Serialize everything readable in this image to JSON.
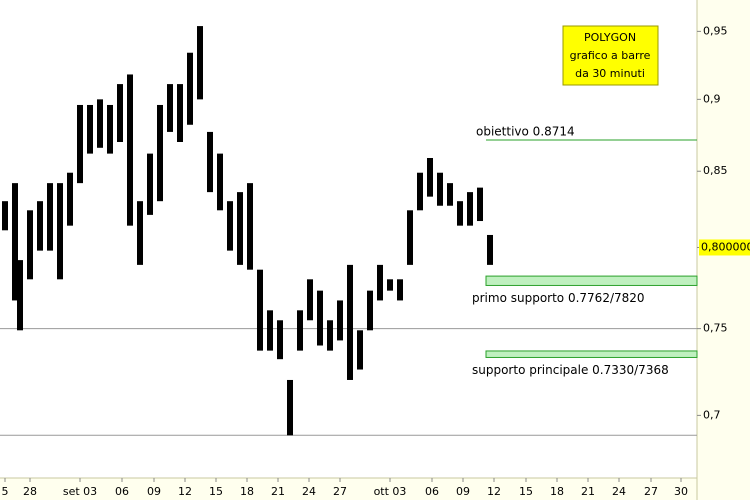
{
  "chart_data": {
    "type": "bar-range",
    "title_lines": [
      "POLYGON",
      "grafico a barre",
      "da 30 minuti"
    ],
    "log_scale": true,
    "ylim": [
      0.666,
      0.974
    ],
    "yticks": [
      {
        "value": 0.95,
        "label": "0,95"
      },
      {
        "value": 0.9,
        "label": "0,9"
      },
      {
        "value": 0.85,
        "label": "0,85"
      },
      {
        "value": 0.8,
        "label": "0,8"
      },
      {
        "value": 0.75,
        "label": "0,75"
      },
      {
        "value": 0.7,
        "label": "0,7"
      }
    ],
    "xlim": [
      0,
      697
    ],
    "xticks": [
      {
        "value": 5,
        "label": "5"
      },
      {
        "value": 30,
        "label": "28"
      },
      {
        "value": 80,
        "label": "set 03"
      },
      {
        "value": 122,
        "label": "06"
      },
      {
        "value": 154,
        "label": "09"
      },
      {
        "value": 185,
        "label": "12"
      },
      {
        "value": 216,
        "label": "15"
      },
      {
        "value": 247,
        "label": "18"
      },
      {
        "value": 278,
        "label": "21"
      },
      {
        "value": 309,
        "label": "24"
      },
      {
        "value": 340,
        "label": "27"
      },
      {
        "value": 390,
        "label": "ott 03"
      },
      {
        "value": 432,
        "label": "06"
      },
      {
        "value": 463,
        "label": "09"
      },
      {
        "value": 494,
        "label": "12"
      },
      {
        "value": 526,
        "label": "15"
      },
      {
        "value": 557,
        "label": "18"
      },
      {
        "value": 588,
        "label": "21"
      },
      {
        "value": 619,
        "label": "24"
      },
      {
        "value": 651,
        "label": "27"
      },
      {
        "value": 681,
        "label": "30"
      }
    ],
    "x": [
      5,
      15,
      20,
      30,
      40,
      50,
      60,
      70,
      80,
      90,
      100,
      110,
      120,
      130,
      140,
      150,
      160,
      170,
      180,
      190,
      200,
      210,
      220,
      230,
      240,
      250,
      260,
      270,
      280,
      290,
      300,
      310,
      320,
      330,
      340,
      350,
      360,
      370,
      380,
      390,
      400,
      410,
      420,
      430,
      440,
      450,
      460,
      470,
      480,
      490
    ],
    "high": [
      0.83,
      0.842,
      0.792,
      0.824,
      0.83,
      0.842,
      0.842,
      0.849,
      0.896,
      0.896,
      0.9,
      0.896,
      0.911,
      0.918,
      0.83,
      0.862,
      0.896,
      0.911,
      0.911,
      0.934,
      0.954,
      0.877,
      0.862,
      0.83,
      0.836,
      0.842,
      0.786,
      0.761,
      0.755,
      0.72,
      0.761,
      0.78,
      0.773,
      0.755,
      0.767,
      0.789,
      0.749,
      0.773,
      0.789,
      0.78,
      0.78,
      0.824,
      0.849,
      0.859,
      0.849,
      0.842,
      0.83,
      0.836,
      0.839,
      0.808
    ],
    "low": [
      0.811,
      0.767,
      0.749,
      0.78,
      0.798,
      0.798,
      0.78,
      0.814,
      0.842,
      0.862,
      0.866,
      0.862,
      0.87,
      0.814,
      0.789,
      0.821,
      0.83,
      0.877,
      0.87,
      0.882,
      0.9,
      0.836,
      0.824,
      0.798,
      0.789,
      0.786,
      0.737,
      0.737,
      0.732,
      0.689,
      0.737,
      0.755,
      0.74,
      0.737,
      0.743,
      0.72,
      0.726,
      0.749,
      0.767,
      0.773,
      0.767,
      0.789,
      0.824,
      0.833,
      0.827,
      0.827,
      0.814,
      0.814,
      0.817,
      0.789
    ],
    "color": "#000000",
    "last_price": {
      "value": 0.8,
      "label": "0,800000"
    },
    "hlines": [
      0.75,
      0.689
    ],
    "levels": [
      {
        "label": "obiettivo 0.8714",
        "value": 0.8714
      },
      {
        "label": "primo supporto 0.7762/7820",
        "low": 0.7762,
        "high": 0.782
      },
      {
        "label": "supporto principale 0.7330/7368",
        "low": 0.733,
        "high": 0.7368
      }
    ],
    "level_color": "#2aa02a"
  }
}
